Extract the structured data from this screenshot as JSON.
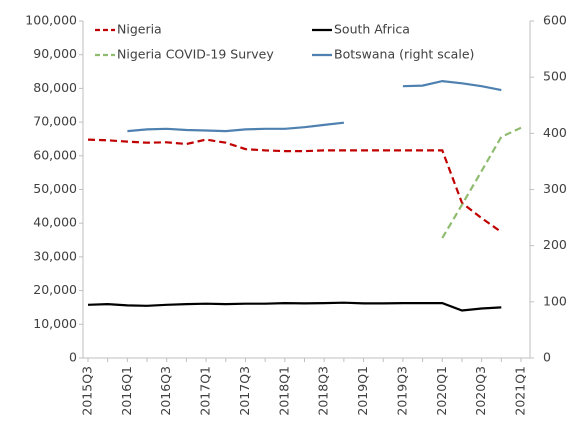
{
  "chart_data": {
    "type": "line",
    "categories": [
      "2015Q3",
      null,
      "2016Q1",
      null,
      "2016Q3",
      null,
      "2017Q1",
      null,
      "2017Q3",
      null,
      "2018Q1",
      null,
      "2018Q3",
      null,
      "2019Q1",
      null,
      "2019Q3",
      null,
      "2020Q1",
      null,
      "2020Q3",
      null,
      "2021Q1"
    ],
    "series": [
      {
        "name": "Nigeria",
        "color": "#c00000",
        "dashed": true,
        "values": [
          64800.0,
          64600.0,
          64200.0,
          63900.0,
          64000.0,
          63500.0,
          64800.0,
          63900.0,
          62000.0,
          61600.0,
          61400.0,
          61400.0,
          61600.0,
          61600.0,
          61600.0,
          61600.0,
          61600.0,
          61600.0,
          61600.0,
          46000.0,
          41500.0,
          37400.0,
          null
        ]
      },
      {
        "name": "South Africa",
        "color": "#000000",
        "dashed": false,
        "values": [
          15800.0,
          16000.0,
          15600.0,
          15500.0,
          15800.0,
          16000.0,
          16100.0,
          16000.0,
          16100.0,
          16100.0,
          16300.0,
          16200.0,
          16300.0,
          16400.0,
          16200.0,
          16200.0,
          16300.0,
          16300.0,
          16300.0,
          14100.0,
          14700.0,
          15000.0,
          null
        ]
      },
      {
        "name": "Nigeria COVID-19 Survey",
        "color": "#8fbc6f",
        "dashed": true,
        "values": [
          null,
          null,
          null,
          null,
          null,
          null,
          null,
          null,
          null,
          null,
          null,
          null,
          null,
          null,
          null,
          null,
          null,
          null,
          35600.0,
          45500.0,
          55500.0,
          65600.0,
          68300.0
        ]
      },
      {
        "name": "Botswana (right scale)",
        "color": "#4e81b0",
        "dashed": false,
        "axis": "y2",
        "values": [
          null,
          null,
          404,
          407,
          408,
          406,
          405,
          404,
          407,
          408,
          408,
          411,
          415,
          419,
          null,
          null,
          484,
          485,
          493,
          489,
          484,
          477,
          null
        ]
      }
    ],
    "ylim": [
      0,
      100000
    ],
    "yticks": [
      0,
      {
        "value": 10000,
        "label": "10,000"
      },
      {
        "value": 20000,
        "label": "20,000"
      },
      {
        "value": 30000,
        "label": "30,000"
      },
      {
        "value": 40000,
        "label": "40,000"
      },
      {
        "value": 50000,
        "label": "50,000"
      },
      {
        "value": 60000,
        "label": "60,000"
      },
      {
        "value": 70000,
        "label": "70,000"
      },
      {
        "value": 80000,
        "label": "80,000"
      },
      {
        "value": 90000,
        "label": "90,000"
      },
      {
        "value": 100000,
        "label": "100,000"
      }
    ],
    "y2lim": [
      0,
      600
    ],
    "y2ticks": [
      0,
      100,
      200,
      300,
      400,
      500,
      600
    ],
    "legend": "top",
    "grid": false
  }
}
